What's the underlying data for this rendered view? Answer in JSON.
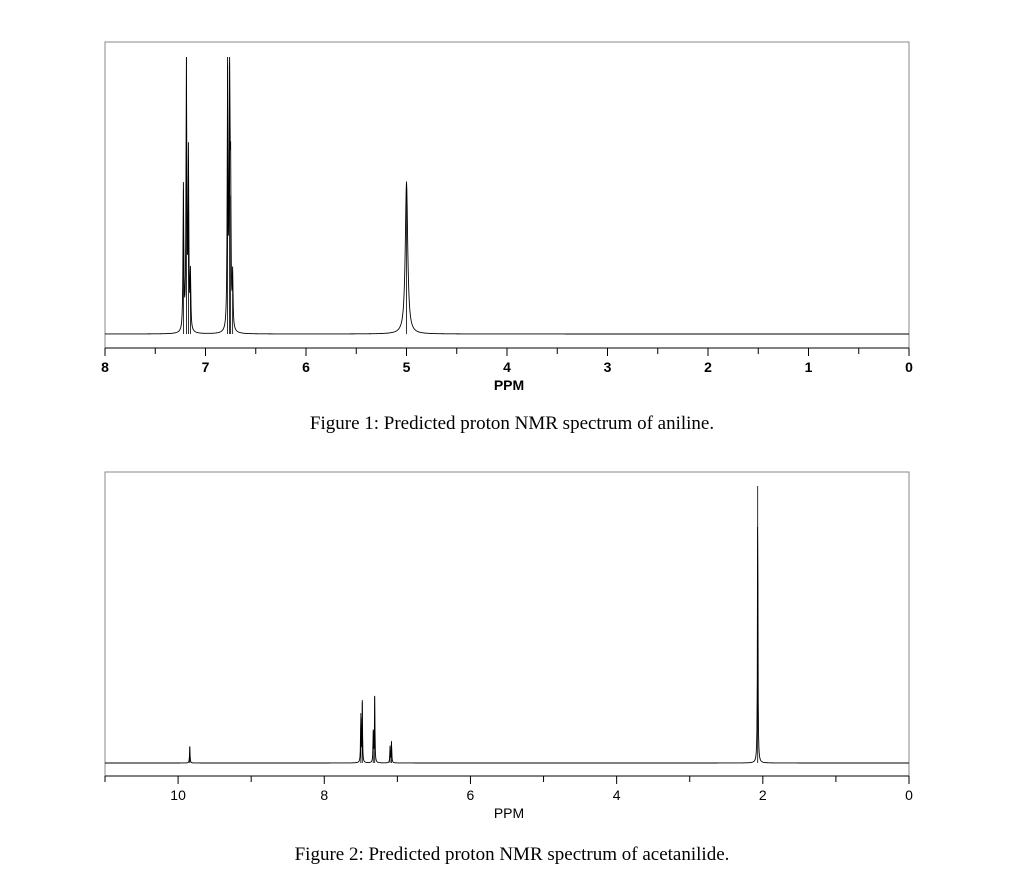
{
  "chart_data": [
    {
      "type": "line",
      "title": "",
      "xlabel": "PPM",
      "ylabel": "",
      "xlim": [
        8,
        0
      ],
      "x_reversed": true,
      "major_ticks": [
        8,
        7,
        6,
        5,
        4,
        3,
        2,
        1,
        0
      ],
      "tick_labels": [
        "8",
        "7",
        "6",
        "5",
        "4",
        "3",
        "2",
        "1",
        "0"
      ],
      "minor_tick_step": 0.5,
      "grid": false,
      "series": [
        {
          "peaks": [
            {
              "ppm": 7.22,
              "height": 0.52
            },
            {
              "ppm": 7.19,
              "height": 1.0
            },
            {
              "ppm": 7.17,
              "height": 0.63
            },
            {
              "ppm": 7.15,
              "height": 0.2
            },
            {
              "ppm": 6.78,
              "height": 0.97
            },
            {
              "ppm": 6.76,
              "height": 0.98
            },
            {
              "ppm": 6.75,
              "height": 0.5
            },
            {
              "ppm": 6.73,
              "height": 0.19
            },
            {
              "ppm": 5.0,
              "height": 0.55,
              "broad": true
            }
          ]
        }
      ],
      "caption": "Figure 1: Predicted proton NMR spectrum of aniline."
    },
    {
      "type": "line",
      "title": "",
      "xlabel": "PPM",
      "ylabel": "",
      "xlim": [
        11,
        0
      ],
      "x_reversed": true,
      "major_ticks": [
        10,
        8,
        6,
        4,
        2,
        0
      ],
      "tick_labels": [
        "10",
        "8",
        "6",
        "4",
        "2",
        "0"
      ],
      "minor_tick_step": 1,
      "grid": false,
      "series": [
        {
          "peaks": [
            {
              "ppm": 9.84,
              "height": 0.06
            },
            {
              "ppm": 7.5,
              "height": 0.18
            },
            {
              "ppm": 7.48,
              "height": 0.22
            },
            {
              "ppm": 7.33,
              "height": 0.12
            },
            {
              "ppm": 7.31,
              "height": 0.24
            },
            {
              "ppm": 7.1,
              "height": 0.06
            },
            {
              "ppm": 7.08,
              "height": 0.08
            },
            {
              "ppm": 2.07,
              "height": 1.0
            }
          ]
        }
      ],
      "caption": "Figure 2: Predicted proton NMR spectrum of acetanilide."
    }
  ]
}
